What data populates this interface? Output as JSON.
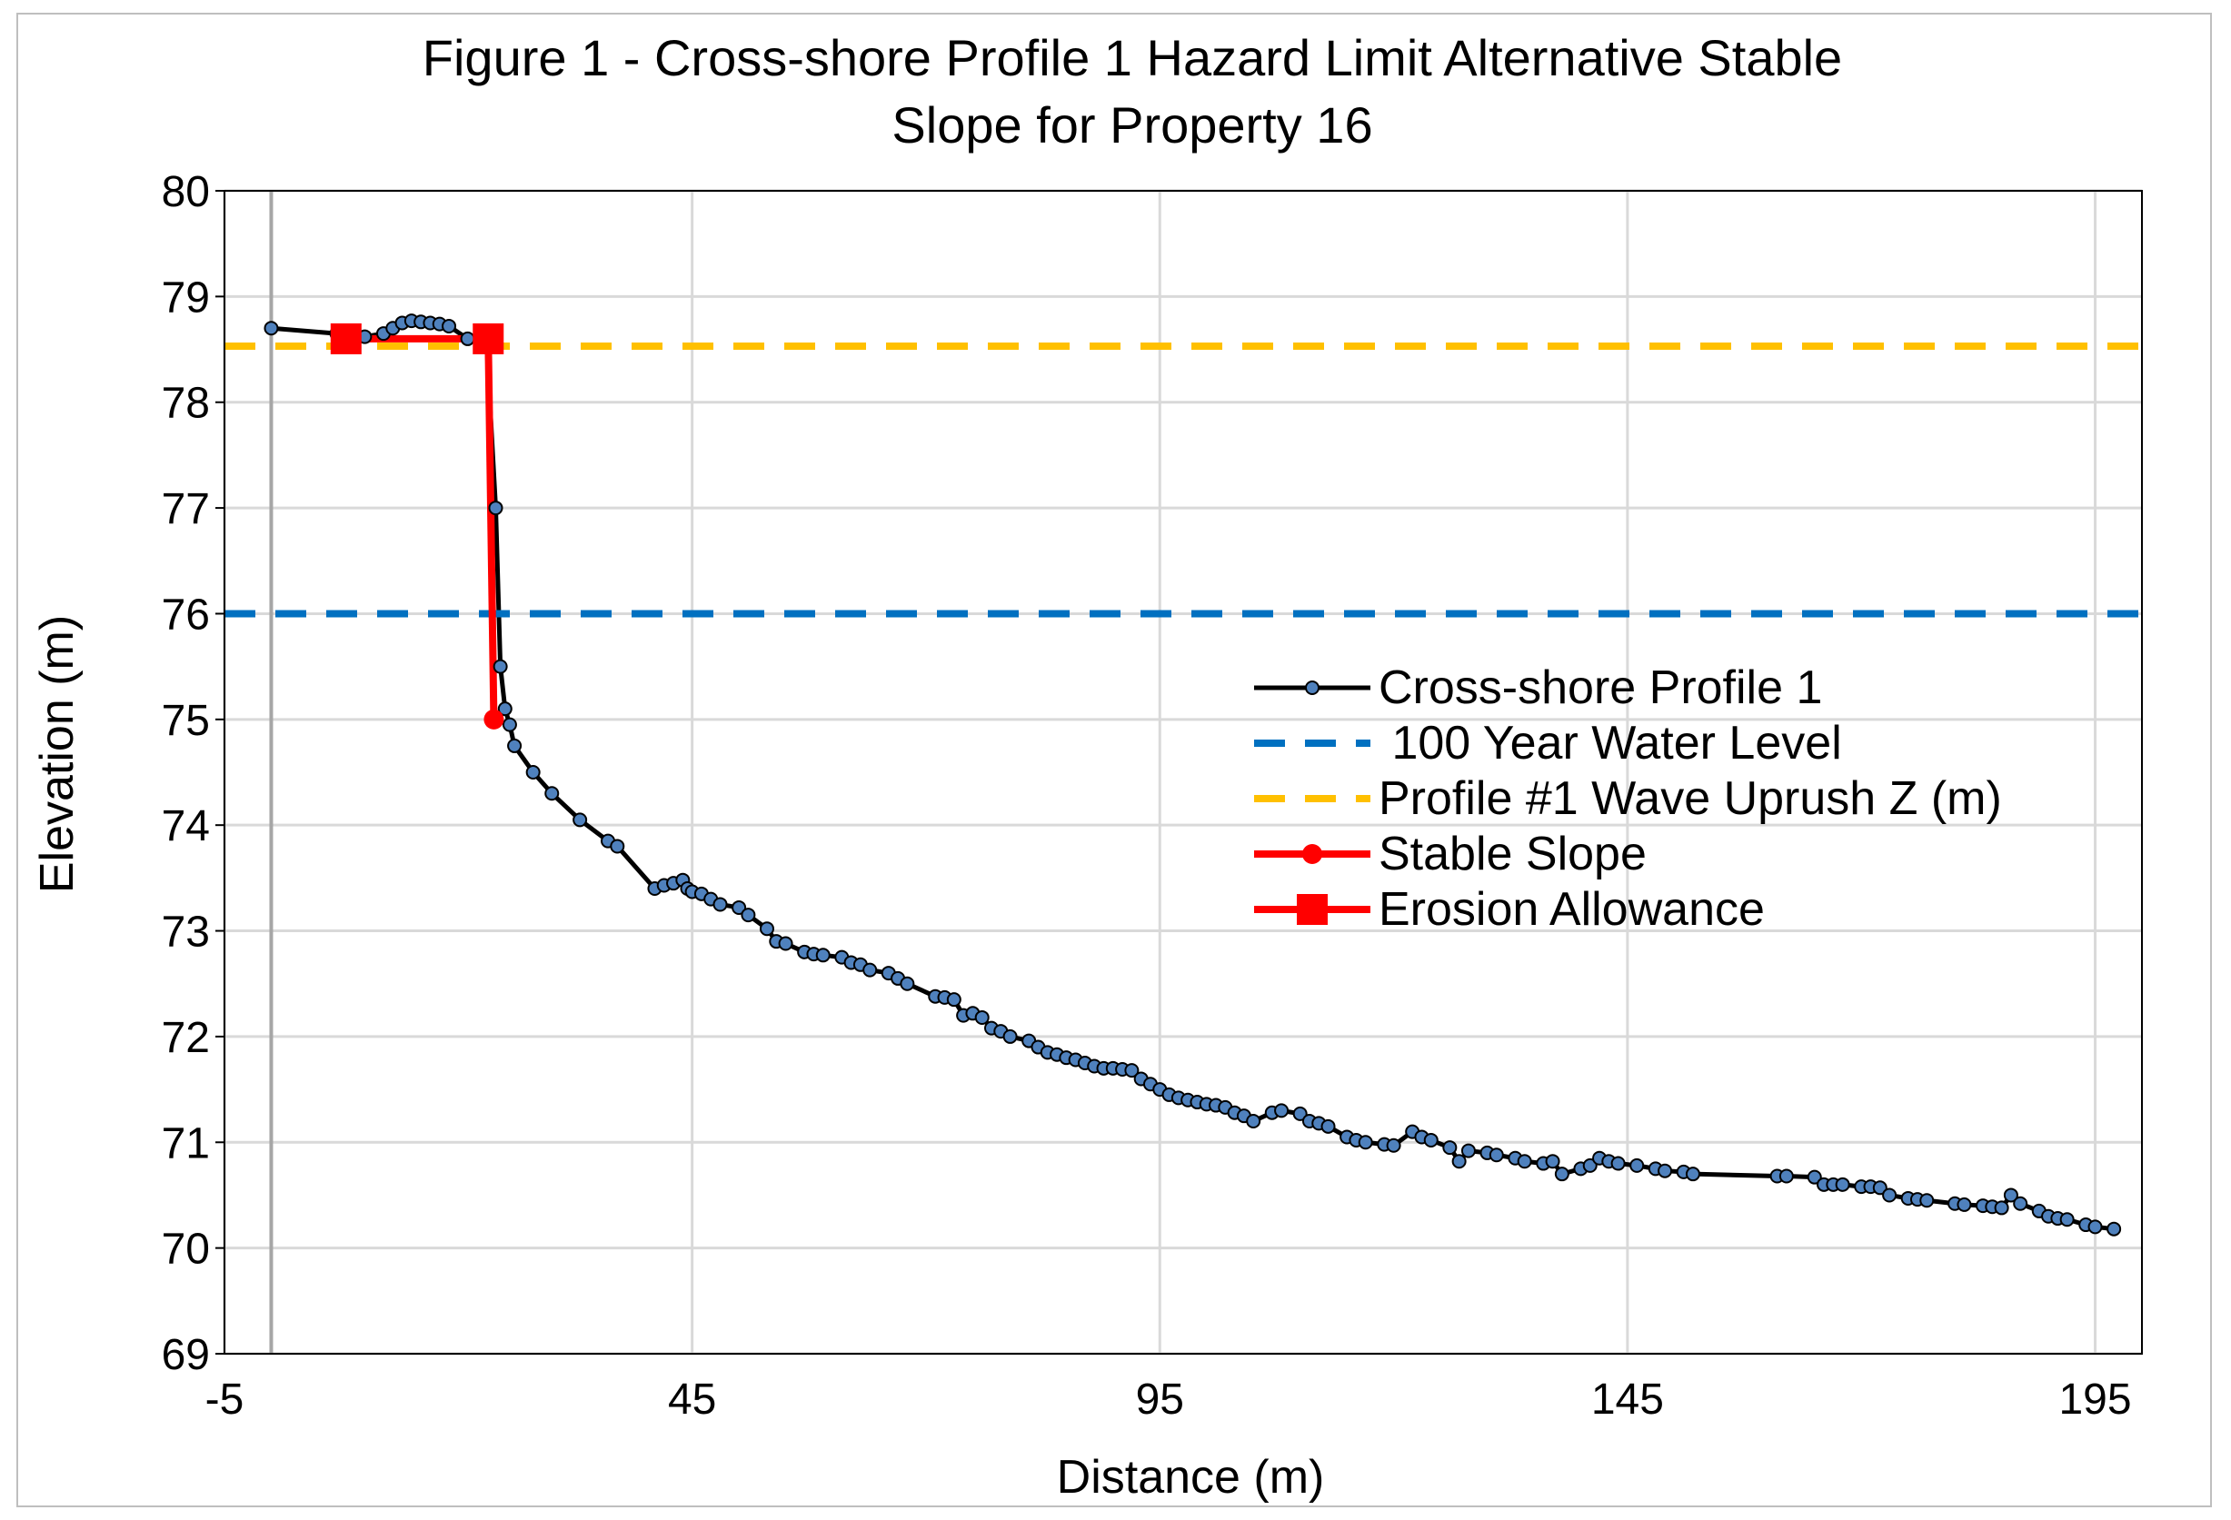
{
  "chart_data": {
    "type": "line",
    "title_line1": "Figure 1 - Cross-shore Profile 1 Hazard Limit Alternative Stable",
    "title_line2": "Slope for Property 16",
    "xlabel": "Distance (m)",
    "ylabel": "Elevation (m)",
    "xlim": [
      -5,
      200
    ],
    "ylim": [
      69,
      80
    ],
    "x_ticks": [
      "-5",
      "45",
      "95",
      "145",
      "195"
    ],
    "x_tick_values": [
      -5,
      45,
      95,
      145,
      195
    ],
    "y_ticks": [
      "69",
      "70",
      "71",
      "72",
      "73",
      "74",
      "75",
      "76",
      "77",
      "78",
      "79",
      "80"
    ],
    "y_tick_values": [
      69,
      70,
      71,
      72,
      73,
      74,
      75,
      76,
      77,
      78,
      79,
      80
    ],
    "grid": true,
    "legend_position": "right-center",
    "series": [
      {
        "name": "Cross-shore Profile 1",
        "color": "#000000",
        "marker_color": "#4f81bd",
        "style": "solid-markers",
        "x": [
          0,
          7,
          10,
          12,
          13,
          14,
          15,
          16,
          17,
          18,
          19,
          21,
          23,
          24,
          24.5,
          25,
          25.5,
          26,
          28,
          30,
          33,
          36,
          37,
          41,
          42,
          43,
          44,
          44.5,
          45,
          46,
          47,
          48,
          50,
          51,
          53,
          54,
          55,
          57,
          58,
          59,
          61,
          62,
          63,
          64,
          66,
          67,
          68,
          71,
          72,
          73,
          74,
          75,
          76,
          77,
          78,
          79,
          81,
          82,
          83,
          84,
          85,
          86,
          87,
          88,
          89,
          90,
          91,
          92,
          93,
          94,
          95,
          96,
          97,
          98,
          99,
          100,
          101,
          102,
          103,
          104,
          105,
          107,
          108,
          110,
          111,
          112,
          113,
          115,
          116,
          117,
          119,
          120,
          122,
          123,
          124,
          126,
          127,
          128,
          130,
          131,
          133,
          134,
          136,
          137,
          138,
          140,
          141,
          142,
          143,
          144,
          146,
          148,
          149,
          151,
          152,
          161,
          162,
          165,
          166,
          167,
          168,
          170,
          171,
          172,
          173,
          175,
          176,
          177,
          180,
          181,
          183,
          184,
          185,
          186,
          187,
          189,
          190,
          191,
          192,
          194,
          195,
          197
        ],
        "y": [
          78.7,
          78.65,
          78.62,
          78.65,
          78.7,
          78.75,
          78.77,
          78.76,
          78.75,
          78.74,
          78.72,
          78.6,
          78.6,
          77,
          75.5,
          75.1,
          74.95,
          74.75,
          74.5,
          74.3,
          74.05,
          73.85,
          73.8,
          73.4,
          73.43,
          73.45,
          73.48,
          73.4,
          73.37,
          73.35,
          73.3,
          73.25,
          73.22,
          73.15,
          73.02,
          72.9,
          72.88,
          72.8,
          72.78,
          72.77,
          72.75,
          72.7,
          72.68,
          72.63,
          72.6,
          72.55,
          72.5,
          72.38,
          72.37,
          72.35,
          72.2,
          72.22,
          72.18,
          72.08,
          72.05,
          72.0,
          71.96,
          71.9,
          71.85,
          71.83,
          71.8,
          71.78,
          71.75,
          71.72,
          71.7,
          71.7,
          71.69,
          71.68,
          71.6,
          71.55,
          71.5,
          71.45,
          71.42,
          71.4,
          71.38,
          71.36,
          71.35,
          71.33,
          71.28,
          71.25,
          71.2,
          71.28,
          71.3,
          71.27,
          71.2,
          71.18,
          71.15,
          71.05,
          71.02,
          71.0,
          70.98,
          70.97,
          71.1,
          71.05,
          71.02,
          70.95,
          70.82,
          70.92,
          70.9,
          70.88,
          70.85,
          70.82,
          70.8,
          70.82,
          70.7,
          70.75,
          70.78,
          70.85,
          70.82,
          70.8,
          70.78,
          70.75,
          70.73,
          70.72,
          70.7,
          70.68,
          70.68,
          70.67,
          70.6,
          70.6,
          70.6,
          70.58,
          70.58,
          70.57,
          70.5,
          70.47,
          70.46,
          70.45,
          70.42,
          70.41,
          70.4,
          70.39,
          70.38,
          70.5,
          70.42,
          70.35,
          70.3,
          70.28,
          70.27,
          70.22,
          70.2,
          70.18
        ]
      },
      {
        "name": " 100 Year Water Level",
        "color": "#0070c0",
        "style": "dashed",
        "x": [
          -5,
          200
        ],
        "y": [
          76.0,
          76.0
        ]
      },
      {
        "name": "Profile #1 Wave Uprush Z (m)",
        "color": "#ffc000",
        "style": "dashed",
        "x": [
          -5,
          200
        ],
        "y": [
          78.53,
          78.53
        ]
      },
      {
        "name": "Stable Slope",
        "color": "#ff0000",
        "style": "solid-circle",
        "x": [
          23.2,
          23.8
        ],
        "y": [
          78.6,
          75.0
        ]
      },
      {
        "name": "Erosion Allowance",
        "color": "#ff0000",
        "style": "solid-square",
        "x": [
          8.0,
          23.2
        ],
        "y": [
          78.6,
          78.6
        ]
      }
    ]
  }
}
